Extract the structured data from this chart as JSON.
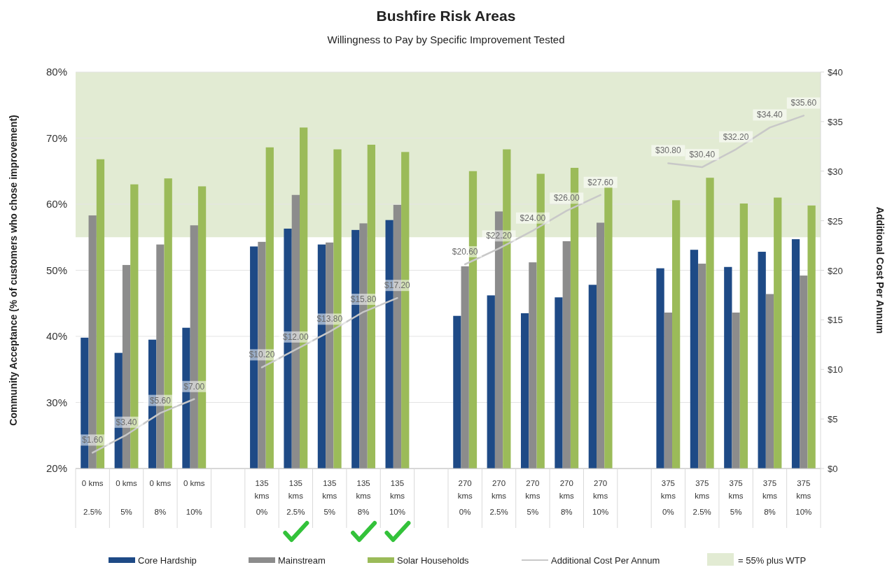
{
  "chart_data": {
    "type": "bar",
    "title": "Bushfire Risk Areas",
    "subtitle": "Willingness to Pay by Specific Improvement Tested",
    "ylabel": "Community Acceptance (% of customers who chose improvement)",
    "y2label": "Additional Cost Per Annum",
    "categories": [
      "0 kms\n2.5%",
      "0 kms\n5%",
      "0 kms\n8%",
      "0 kms\n10%",
      null,
      "135 kms\n0%",
      "135 kms\n2.5%",
      "135 kms\n5%",
      "135 kms\n8%",
      "135 kms\n10%",
      null,
      "270 kms\n0%",
      "270 kms\n2.5%",
      "270 kms\n5%",
      "270 kms\n8%",
      "270 kms\n10%",
      null,
      "375 kms\n0%",
      "375 kms\n2.5%",
      "375 kms\n5%",
      "375 kms\n8%",
      "375 kms\n10%"
    ],
    "series": [
      {
        "name": "Core Hardship",
        "color": "#1e4a86",
        "values": [
          39.8,
          37.5,
          39.5,
          41.3,
          null,
          53.6,
          56.3,
          53.9,
          56.1,
          57.6,
          null,
          43.1,
          46.2,
          43.5,
          45.9,
          47.8,
          null,
          50.3,
          53.1,
          50.5,
          52.8,
          54.7
        ]
      },
      {
        "name": "Mainstream",
        "color": "#8c8c8c",
        "values": [
          58.3,
          50.8,
          53.9,
          56.8,
          null,
          54.3,
          61.4,
          54.2,
          57.1,
          59.9,
          null,
          50.6,
          58.9,
          51.2,
          54.4,
          57.2,
          null,
          43.6,
          51.0,
          43.6,
          46.4,
          49.2
        ]
      },
      {
        "name": "Solar Households",
        "color": "#9bbb59",
        "values": [
          66.8,
          63.0,
          63.9,
          62.7,
          null,
          68.6,
          71.6,
          68.3,
          69.0,
          67.9,
          null,
          65.0,
          68.3,
          64.6,
          65.5,
          62.6,
          null,
          60.6,
          64.0,
          60.1,
          61.0,
          59.8
        ]
      },
      {
        "name": "Additional Cost Per Annum",
        "type": "line",
        "axis": "y2",
        "color": "#c8c8c8",
        "values": [
          1.6,
          3.4,
          5.6,
          7.0,
          null,
          10.2,
          12.0,
          13.8,
          15.8,
          17.2,
          null,
          20.6,
          22.2,
          24.0,
          26.0,
          27.6,
          null,
          30.8,
          30.4,
          32.2,
          34.4,
          35.6
        ],
        "value_labels": [
          "$1.60",
          "$3.40",
          "$5.60",
          "$7.00",
          null,
          "$10.20",
          "$12.00",
          "$13.80",
          "$15.80",
          "$17.20",
          null,
          "$20.60",
          "$22.20",
          "$24.00",
          "$26.00",
          "$27.60",
          null,
          "$30.80",
          "$30.40",
          "$32.20",
          "$34.40",
          "$35.60"
        ]
      }
    ],
    "ylim": [
      20,
      80
    ],
    "yticks": [
      {
        "value": 20,
        "label": "20%"
      },
      {
        "value": 30,
        "label": "30%"
      },
      {
        "value": 40,
        "label": "40%"
      },
      {
        "value": 50,
        "label": "50%"
      },
      {
        "value": 60,
        "label": "60%"
      },
      {
        "value": 70,
        "label": "70%"
      },
      {
        "value": 80,
        "label": "80%"
      }
    ],
    "y2lim": [
      0,
      40
    ],
    "y2ticks": [
      {
        "value": 0,
        "label": "$0"
      },
      {
        "value": 5,
        "label": "$5"
      },
      {
        "value": 10,
        "label": "$10"
      },
      {
        "value": 15,
        "label": "$15"
      },
      {
        "value": 20,
        "label": "$20"
      },
      {
        "value": 25,
        "label": "$25"
      },
      {
        "value": 30,
        "label": "$30"
      },
      {
        "value": 35,
        "label": "$35"
      },
      {
        "value": 40,
        "label": "$40"
      }
    ],
    "bands": [
      {
        "axis": "y",
        "from": 55,
        "to": 80,
        "label": "= 55% plus WTP",
        "color": "#e2ebd3"
      }
    ],
    "grid": "y",
    "legend": "bottom"
  }
}
